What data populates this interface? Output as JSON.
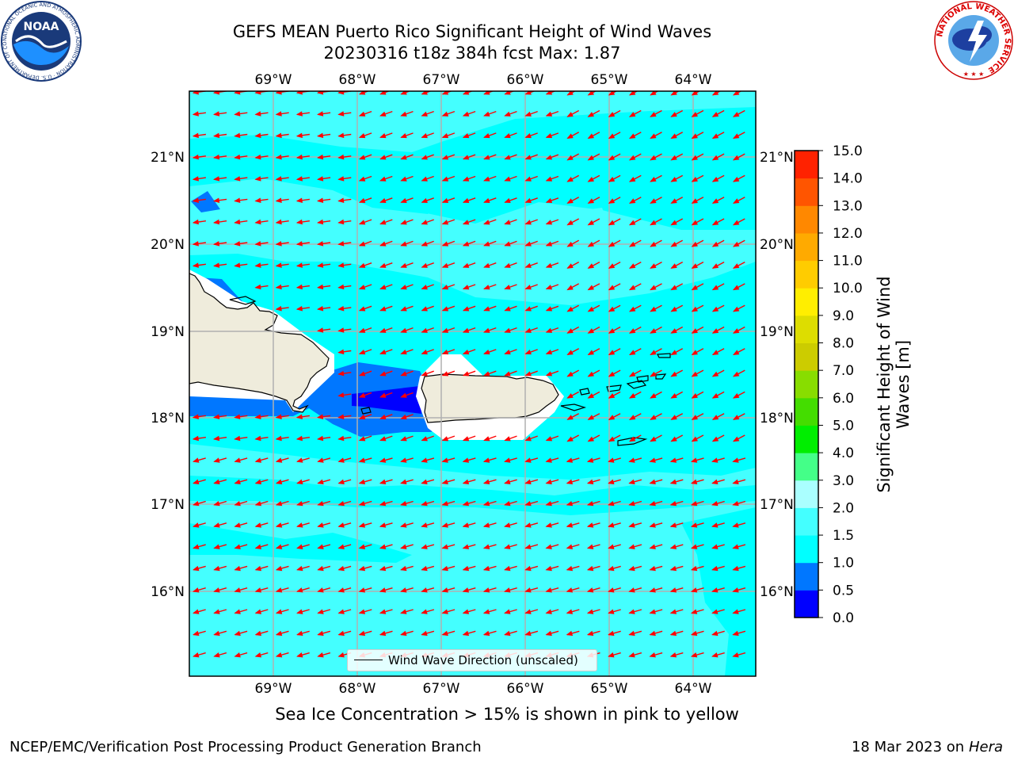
{
  "title": {
    "line1": "GEFS MEAN Puerto Rico Significant Height of Wind Waves",
    "line2": "20230316 t18z 384h fcst   Max: 1.87"
  },
  "axes": {
    "x_ticks": [
      "69°W",
      "68°W",
      "67°W",
      "66°W",
      "65°W",
      "64°W"
    ],
    "y_ticks": [
      "21°N",
      "20°N",
      "19°N",
      "18°N",
      "17°N",
      "16°N"
    ],
    "lon_range": [
      -70.0,
      -63.25
    ],
    "lat_range": [
      15.0,
      21.75
    ],
    "grid": true
  },
  "colorbar": {
    "title": "Significant Height of Wind Waves [m]",
    "levels": [
      "0.0",
      "0.5",
      "1.0",
      "1.5",
      "2.0",
      "3.0",
      "4.0",
      "5.0",
      "6.0",
      "7.0",
      "8.0",
      "9.0",
      "10.0",
      "11.0",
      "12.0",
      "13.0",
      "14.0",
      "15.0"
    ],
    "colors": [
      "#0000ff",
      "#0077ff",
      "#00ffff",
      "#44ffff",
      "#aaffff",
      "#44ff88",
      "#00ee00",
      "#44dd00",
      "#88dd00",
      "#cccc00",
      "#dddd00",
      "#ffee00",
      "#ffcc00",
      "#ffaa00",
      "#ff8800",
      "#ff5500",
      "#ff2200"
    ]
  },
  "chart_data": {
    "type": "heatmap",
    "variable": "Significant Height of Wind Waves",
    "units": "m",
    "max_value": 1.87,
    "dominant_range": "1.0 - 2.0",
    "wave_direction": "toward southwest",
    "legend_entries": [
      "Wind Wave Direction (unscaled)"
    ]
  },
  "legend": {
    "label": "Wind Wave Direction (unscaled)"
  },
  "note": "Sea Ice Concentration > 15% is shown in pink to yellow",
  "footer": {
    "left": "NCEP/EMC/Verification Post Processing Product Generation Branch",
    "right_date": "18 Mar 2023 on",
    "right_host": "Hera"
  },
  "logos": {
    "noaa": {
      "text": "NOAA",
      "ring_text": "NATIONAL OCEANIC AND ATMOSPHERIC ADMINISTRATION · U.S. DEPARTMENT OF COMMERCE"
    },
    "nws": {
      "ring_text": "NATIONAL WEATHER SERVICE"
    }
  },
  "colors": {
    "ocean": "#00ffff",
    "land": "#efecdc",
    "arrows": "#ff0000"
  }
}
